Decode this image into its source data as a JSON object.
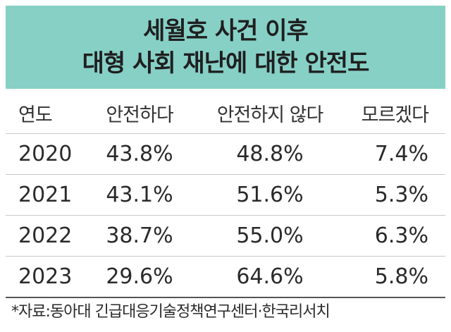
{
  "chart_data": {
    "type": "table",
    "title_lines": [
      "세월호 사건 이후",
      "대형 사회 재난에 대한 안전도"
    ],
    "columns": [
      "연도",
      "안전하다",
      "안전하지 않다",
      "모르겠다"
    ],
    "rows": [
      [
        "2020",
        "43.8%",
        "48.8%",
        "7.4%"
      ],
      [
        "2021",
        "43.1%",
        "51.6%",
        "5.3%"
      ],
      [
        "2022",
        "38.7%",
        "55.0%",
        "6.3%"
      ],
      [
        "2023",
        "29.6%",
        "64.6%",
        "5.8%"
      ]
    ],
    "source": "*자료:동아대 긴급대응기술정책연구센터·한국리서치"
  },
  "colors": {
    "title_background": "#87d0c6",
    "text": "#2a2a2a",
    "rule": "#c9c9c9"
  }
}
